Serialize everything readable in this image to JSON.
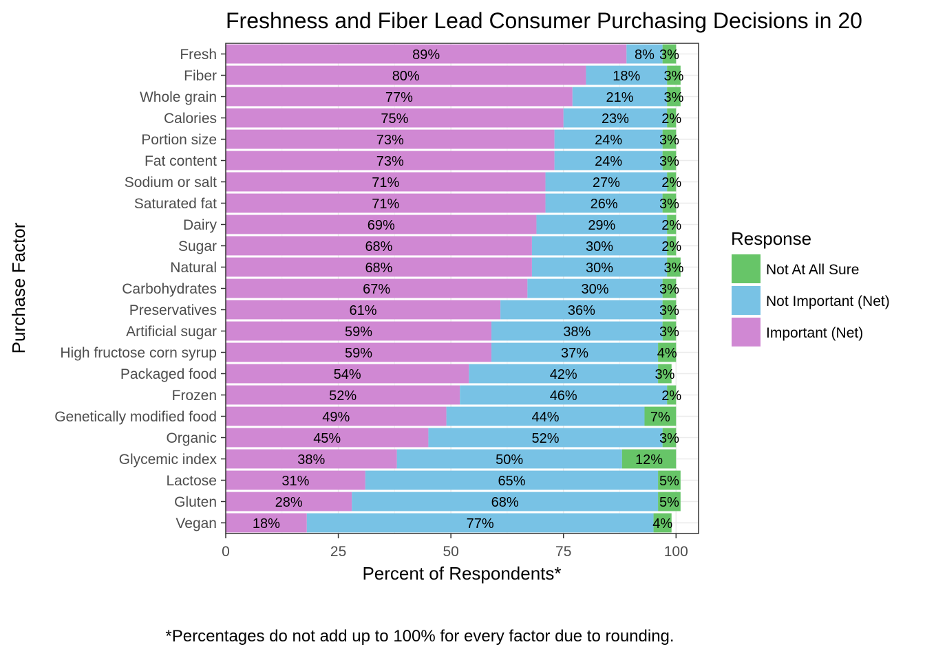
{
  "chart_data": {
    "type": "bar",
    "orientation": "horizontal",
    "stacked": true,
    "title": "Freshness and Fiber Lead Consumer Purchasing Decisions in 20",
    "xlabel": "Percent of Respondents*",
    "ylabel": "Purchase Factor",
    "xlim": [
      0,
      105
    ],
    "xticks": [
      0,
      25,
      50,
      75,
      100
    ],
    "grid": true,
    "legend_title": "Response",
    "legend_position": "right",
    "categories": [
      "Fresh",
      "Fiber",
      "Whole grain",
      "Calories",
      "Portion size",
      "Fat content",
      "Sodium or salt",
      "Saturated fat",
      "Dairy",
      "Sugar",
      "Natural",
      "Carbohydrates",
      "Preservatives",
      "Artificial sugar",
      "High fructose corn syrup",
      "Packaged food",
      "Frozen",
      "Genetically modified food",
      "Organic",
      "Glycemic index",
      "Lactose",
      "Gluten",
      "Vegan"
    ],
    "series": [
      {
        "name": "Important (Net)",
        "color": "#d088d3",
        "values": [
          89,
          80,
          77,
          75,
          73,
          73,
          71,
          71,
          69,
          68,
          68,
          67,
          61,
          59,
          59,
          54,
          52,
          49,
          45,
          38,
          31,
          28,
          18
        ]
      },
      {
        "name": "Not Important (Net)",
        "color": "#78c2e5",
        "values": [
          8,
          18,
          21,
          23,
          24,
          24,
          27,
          26,
          29,
          30,
          30,
          30,
          36,
          38,
          37,
          42,
          46,
          44,
          52,
          50,
          65,
          68,
          77
        ]
      },
      {
        "name": "Not At All Sure",
        "color": "#67c568",
        "values": [
          3,
          3,
          3,
          2,
          3,
          3,
          2,
          3,
          2,
          2,
          3,
          3,
          3,
          3,
          4,
          3,
          2,
          7,
          3,
          12,
          5,
          5,
          4
        ]
      }
    ],
    "legend_order": [
      "Not At All Sure",
      "Not Important (Net)",
      "Important (Net)"
    ]
  },
  "footnote": "*Percentages do not add up to 100% for every factor due to rounding."
}
